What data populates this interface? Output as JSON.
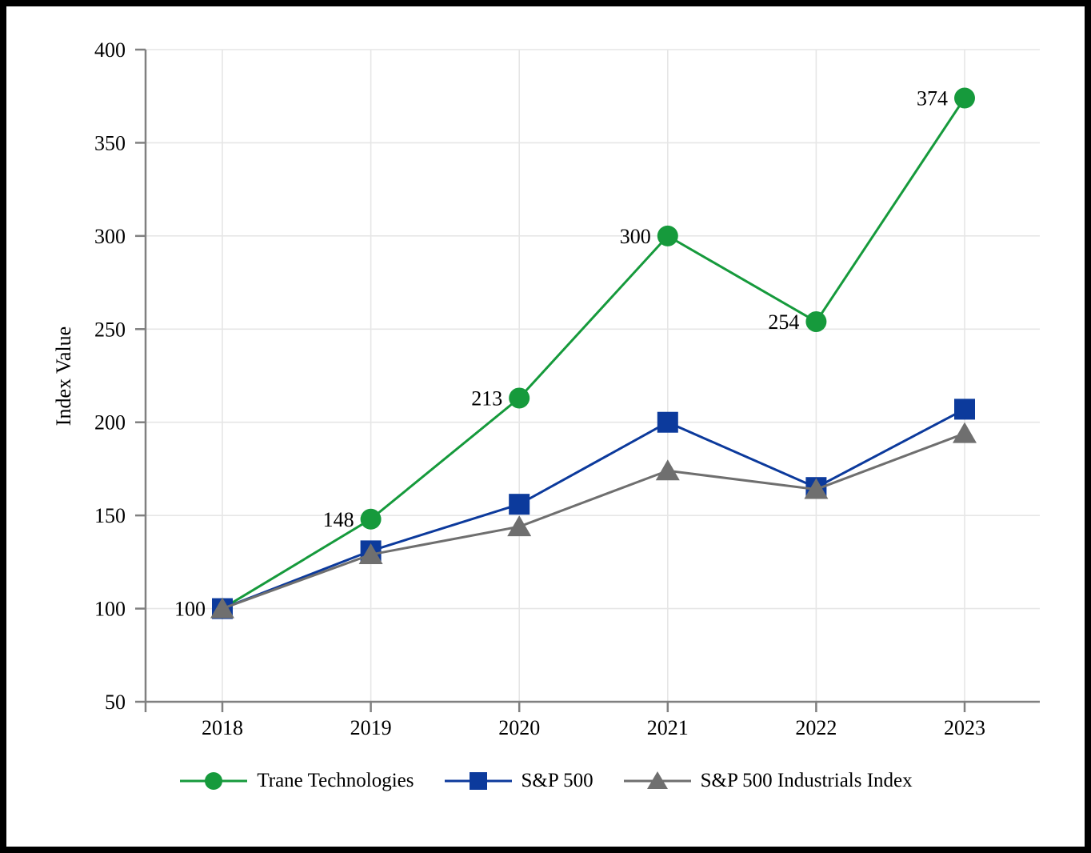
{
  "chart_data": {
    "type": "line",
    "title": "",
    "ylabel": "Index Value",
    "xlabel": "",
    "categories": [
      "2018",
      "2019",
      "2020",
      "2021",
      "2022",
      "2023"
    ],
    "y_ticks": [
      50,
      100,
      150,
      200,
      250,
      300,
      350,
      400
    ],
    "ylim": [
      50,
      400
    ],
    "grid": true,
    "legend_position": "bottom",
    "series": [
      {
        "name": "Trane Technologies",
        "marker": "circle",
        "color": "#169A3C",
        "values": [
          100,
          148,
          213,
          300,
          254,
          374
        ],
        "data_labels": [
          "100",
          "148",
          "213",
          "300",
          "254",
          "374"
        ]
      },
      {
        "name": "S&P 500",
        "marker": "square",
        "color": "#0C3A9C",
        "values": [
          100,
          131,
          156,
          200,
          165,
          207
        ],
        "data_labels": null
      },
      {
        "name": "S&P 500 Industrials Index",
        "marker": "triangle",
        "color": "#6F6F6F",
        "values": [
          100,
          129,
          144,
          174,
          164,
          194
        ],
        "data_labels": null
      }
    ]
  },
  "colors": {
    "background": "#FFFFFF",
    "frame": "#000000",
    "grid": "#E6E6E6",
    "axis": "#808080",
    "text": "#000000"
  }
}
